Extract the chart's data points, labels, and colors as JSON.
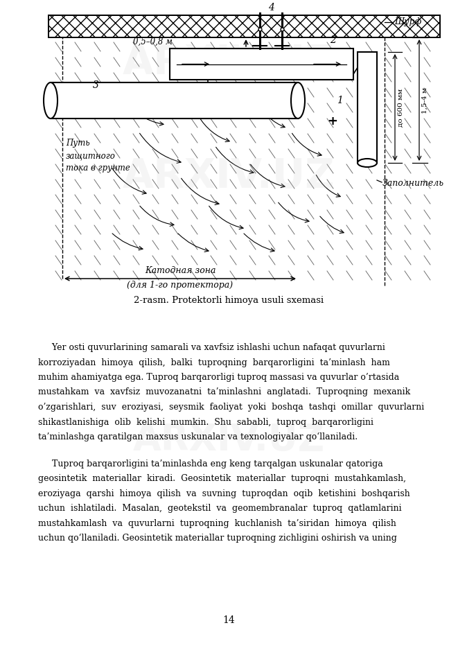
{
  "page_width": 6.61,
  "page_height": 9.35,
  "background_color": "#ffffff",
  "diagram_caption": "2-rasm. Protektorli himoya usuli sxemasi",
  "page_number": "14",
  "line_color": "#000000",
  "text_color": "#000000",
  "label_shyurf": "Шурф",
  "label_katodnaya": "Катодная зона",
  "label_dlya": "(для 1-го протектора)",
  "label_put": "Путь\nзащитного\nтока в грунте",
  "label_zapolnitel": "Заполнитель",
  "label_do600": "до 600 мм",
  "label_154m": "1,5-4 м",
  "label_05_08m": "0,5–0,8 м",
  "p1_lines": [
    "     Yer osti quvurlarining samarali va xavfsiz ishlashi uchun nafaqat quvurlarni",
    "korroziyadan  himoya  qilish,  balki  tuproqning  barqarorligini  ta’minlash  ham",
    "muhim ahamiyatga ega. Tuproq barqarorligi tuproq massasi va quvurlar o’rtasida",
    "mustahkam  va  xavfsiz  muvozanatni  ta’minlashni  anglatadi.  Tuproqning  mexanik",
    "o’zgarishlari,  suv  eroziyasi,  seysmik  faoliyat  yoki  boshqa  tashqi  omillar  quvurlarni",
    "shikastlanishiga  olib  kelishi  mumkin.  Shu  sababli,  tuproq  barqarorligini",
    "ta’minlashga qaratilgan maxsus uskunalar va texnologiyalar qo‘llaniladi."
  ],
  "p2_lines": [
    "     Tuproq barqarorligini ta’minlashda eng keng tarqalgan uskunalar qatoriga",
    "geosintetik  materiallar  kiradi.  Geosintetik  materiallar  tuproqni  mustahkamlash,",
    "eroziyaga  qarshi  himoya  qilish  va  suvning  tuproqdan  oqib  ketishini  boshqarish",
    "uchun  ishlatiladi.  Masalan,  geotekstil  va  geomembranalar  tuproq  qatlamlarini",
    "mustahkamlash  va  quvurlarni  tuproqning  kuchlanish  ta’siridan  himoya  qilish",
    "uchun qo‘llaniladi. Geosintetik materiallar tuproqning zichligini oshirish va uning"
  ]
}
